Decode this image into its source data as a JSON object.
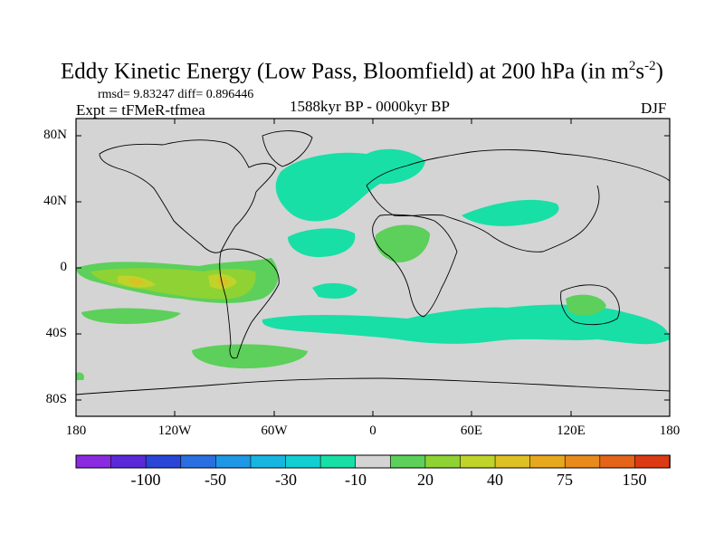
{
  "title_prefix": "Eddy Kinetic Energy (Low Pass, Bloomfield) at 200 hPa (in m",
  "title_sup1": "2",
  "title_mid": "s",
  "title_sup2": "-2",
  "title_suffix": ")",
  "stats": "rmsd= 9.83247 diff= 0.896446",
  "expt": "Expt = tFMeR-tfmea",
  "period": "1588kyr BP - 0000kyr BP",
  "season": "DJF",
  "map": {
    "lat_ticks": [
      "80N",
      "40N",
      "0",
      "40S",
      "80S"
    ],
    "lon_ticks": [
      "180",
      "120W",
      "60W",
      "0",
      "60E",
      "120E",
      "180"
    ],
    "background_color": "#d4d4d4"
  },
  "colorbar": {
    "colors": [
      "#8a2be2",
      "#5a2ad8",
      "#2a46d6",
      "#2a6fe0",
      "#1e98e6",
      "#17b6e0",
      "#12cfd2",
      "#18dfa6",
      "#d4d4d4",
      "#5cd05a",
      "#8fd233",
      "#bfd32a",
      "#dcc024",
      "#e6a81e",
      "#e88a1c",
      "#e46418",
      "#dc3a14"
    ],
    "tick_labels": [
      "-100",
      "-50",
      "-30",
      "-10",
      "20",
      "40",
      "75",
      "150"
    ]
  }
}
